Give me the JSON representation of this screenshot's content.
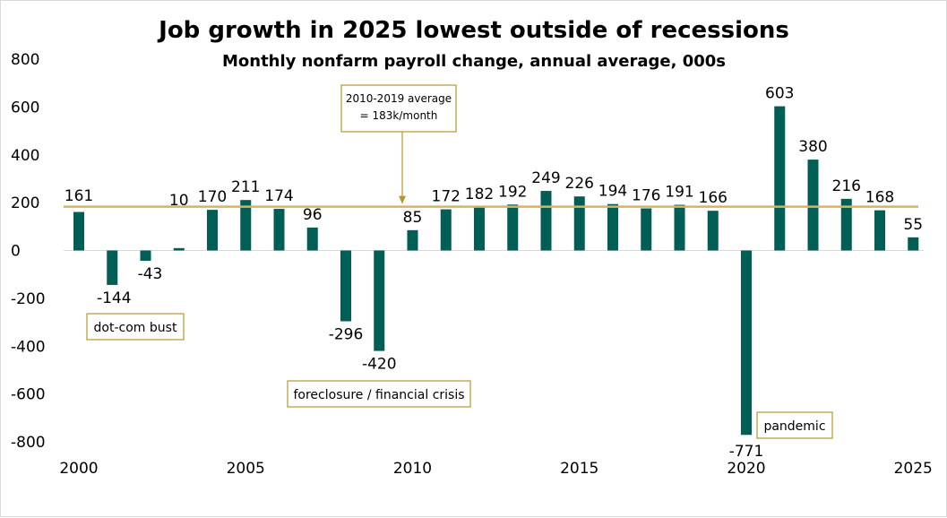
{
  "chart_data": {
    "type": "bar",
    "title": "Job growth in 2025 lowest outside of recessions",
    "subtitle": "Monthly nonfarm payroll change, annual average, 000s",
    "xlabel": "",
    "ylabel": "",
    "ylim": [
      -800,
      800
    ],
    "yticks": [
      "800",
      "600",
      "400",
      "200",
      "0",
      "-200",
      "-400",
      "-600",
      "-800"
    ],
    "xticks": [
      "2000",
      "2005",
      "2010",
      "2015",
      "2020",
      "2025"
    ],
    "categories": [
      "2000",
      "2001",
      "2002",
      "2003",
      "2004",
      "2005",
      "2006",
      "2007",
      "2008",
      "2009",
      "2010",
      "2011",
      "2012",
      "2013",
      "2014",
      "2015",
      "2016",
      "2017",
      "2018",
      "2019",
      "2020",
      "2021",
      "2022",
      "2023",
      "2024",
      "2025"
    ],
    "values": [
      161,
      -144,
      -43,
      10,
      170,
      211,
      174,
      96,
      -296,
      -420,
      85,
      172,
      182,
      192,
      249,
      226,
      194,
      176,
      191,
      166,
      -771,
      603,
      380,
      216,
      168,
      55
    ],
    "value_labels": [
      "161",
      "-144",
      "-43",
      "10",
      "170",
      "211",
      "174",
      "96",
      "-296",
      "-420",
      "85",
      "172",
      "182",
      "192",
      "249",
      "226",
      "194",
      "176",
      "191",
      "166",
      "-771",
      "603",
      "380",
      "216",
      "168",
      "55"
    ],
    "reference_line": {
      "value": 183,
      "label_line1": "2010-2019 average",
      "label_line2": "= 183k/month"
    },
    "annotations": [
      {
        "text": "dot-com bust",
        "year": "2002"
      },
      {
        "text": "foreclosure / financial crisis",
        "year": "2009"
      },
      {
        "text": "pandemic",
        "year": "2021"
      }
    ],
    "colors": {
      "bar": "#005e55",
      "reference": "#d4b565",
      "annotation_border": "#b8962e",
      "arrow": "#b8962e"
    }
  }
}
